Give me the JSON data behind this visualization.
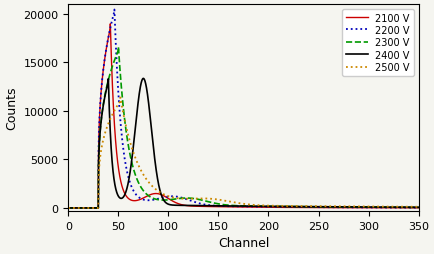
{
  "xlabel": "Channel",
  "ylabel": "Counts",
  "xlim": [
    0,
    350
  ],
  "ylim": [
    -300,
    21000
  ],
  "xticks": [
    0,
    50,
    100,
    150,
    200,
    250,
    300,
    350
  ],
  "yticks": [
    0,
    5000,
    10000,
    15000,
    20000
  ],
  "series": [
    {
      "label": "2100 V",
      "color": "#cc0000",
      "linestyle": "solid",
      "linewidth": 1.0
    },
    {
      "label": "2200 V",
      "color": "#0000bb",
      "linestyle": "dotted",
      "linewidth": 1.3
    },
    {
      "label": "2300 V",
      "color": "#009900",
      "linestyle": "dashed",
      "linewidth": 1.2
    },
    {
      "label": "2400 V",
      "color": "#000000",
      "linestyle": "solid",
      "linewidth": 1.2
    },
    {
      "label": "2500 V",
      "color": "#cc8800",
      "linestyle": "dotted",
      "linewidth": 1.3
    }
  ],
  "background_color": "#f5f5f0",
  "legend_fontsize": 7.0,
  "axis_fontsize": 9,
  "tick_fontsize": 8
}
